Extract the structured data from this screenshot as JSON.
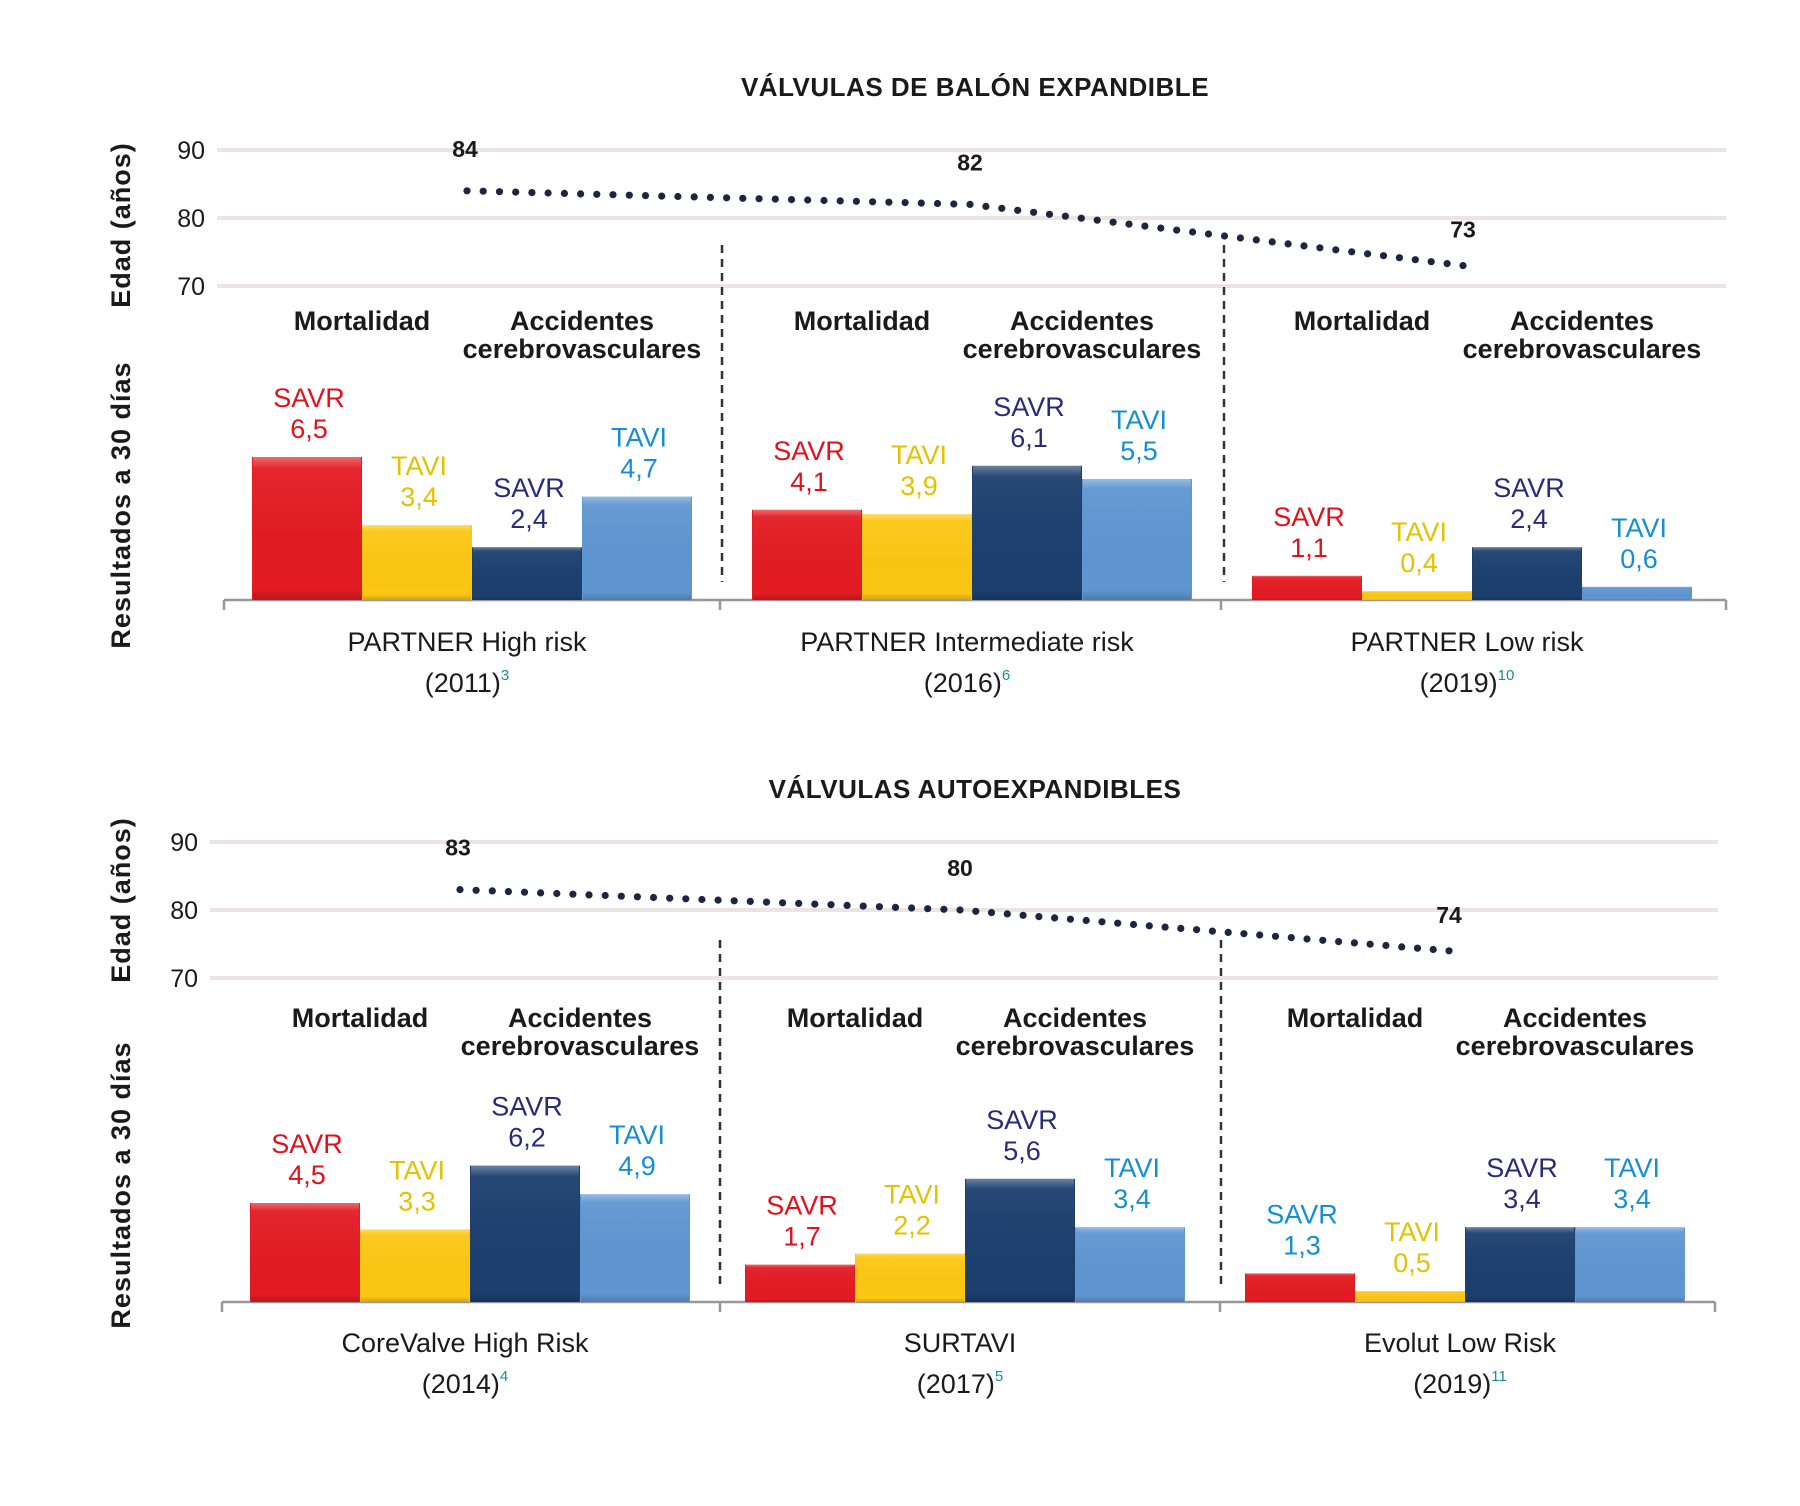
{
  "colors": {
    "mortality_savr": "#e31b23",
    "mortality_tavi": "#fcc713",
    "stroke_savr": "#1c3f6e",
    "stroke_tavi": "#5f96d1",
    "label_red": "#e3101b",
    "label_yellow": "#e3c200",
    "label_navy": "#2a2a7c",
    "label_blue": "#148fd6"
  },
  "chart_data": [
    {
      "type": "bar",
      "title": "VÁLVULAS DE BALÓN EXPANDIBLE",
      "ylabel_age": "Edad (años)",
      "ylabel_outcomes": "Resultados a 30 días",
      "age_axis": {
        "ticks": [
          "90",
          "80",
          "70"
        ],
        "range": [
          70,
          90
        ],
        "grid": true
      },
      "group_headers": [
        "Mortalidad",
        "Accidentes",
        "cerebrovasculares"
      ],
      "trials": [
        {
          "name": "PARTNER High risk",
          "year": "(2011)",
          "ref": "3",
          "age": 84,
          "bars": [
            {
              "series": "Mortalidad SAVR",
              "label": "SAVR",
              "value_text": "6,5",
              "value": 6.5,
              "label_color": "label_red",
              "bar_color": "mortality_savr"
            },
            {
              "series": "Mortalidad TAVI",
              "label": "TAVI",
              "value_text": "3,4",
              "value": 3.4,
              "label_color": "label_yellow",
              "bar_color": "mortality_tavi"
            },
            {
              "series": "ACV SAVR",
              "label": "SAVR",
              "value_text": "2,4",
              "value": 2.4,
              "label_color": "label_navy",
              "bar_color": "stroke_savr"
            },
            {
              "series": "ACV TAVI",
              "label": "TAVI",
              "value_text": "4,7",
              "value": 4.7,
              "label_color": "label_blue",
              "bar_color": "stroke_tavi"
            }
          ]
        },
        {
          "name": "PARTNER Intermediate risk",
          "year": "(2016)",
          "ref": "6",
          "age": 82,
          "bars": [
            {
              "series": "Mortalidad SAVR",
              "label": "SAVR",
              "value_text": "4,1",
              "value": 4.1,
              "label_color": "label_red",
              "bar_color": "mortality_savr"
            },
            {
              "series": "Mortalidad TAVI",
              "label": "TAVI",
              "value_text": "3,9",
              "value": 3.9,
              "label_color": "label_yellow",
              "bar_color": "mortality_tavi"
            },
            {
              "series": "ACV SAVR",
              "label": "SAVR",
              "value_text": "6,1",
              "value": 6.1,
              "label_color": "label_navy",
              "bar_color": "stroke_savr"
            },
            {
              "series": "ACV TAVI",
              "label": "TAVI",
              "value_text": "5,5",
              "value": 5.5,
              "label_color": "label_blue",
              "bar_color": "stroke_tavi"
            }
          ]
        },
        {
          "name": "PARTNER Low risk",
          "year": "(2019)",
          "ref": "10",
          "age": 73,
          "bars": [
            {
              "series": "Mortalidad SAVR",
              "label": "SAVR",
              "value_text": "1,1",
              "value": 1.1,
              "label_color": "label_red",
              "bar_color": "mortality_savr"
            },
            {
              "series": "Mortalidad TAVI",
              "label": "TAVI",
              "value_text": "0,4",
              "value": 0.4,
              "label_color": "label_yellow",
              "bar_color": "mortality_tavi"
            },
            {
              "series": "ACV SAVR",
              "label": "SAVR",
              "value_text": "2,4",
              "value": 2.4,
              "label_color": "label_navy",
              "bar_color": "stroke_savr"
            },
            {
              "series": "ACV TAVI",
              "label": "TAVI",
              "value_text": "0,6",
              "value": 0.6,
              "label_color": "label_blue",
              "bar_color": "stroke_tavi"
            }
          ]
        }
      ]
    },
    {
      "type": "bar",
      "title": "VÁLVULAS AUTOEXPANDIBLES",
      "ylabel_age": "Edad (años)",
      "ylabel_outcomes": "Resultados a 30 días",
      "age_axis": {
        "ticks": [
          "90",
          "80",
          "70"
        ],
        "range": [
          70,
          90
        ],
        "grid": true
      },
      "group_headers": [
        "Mortalidad",
        "Accidentes",
        "cerebrovasculares"
      ],
      "trials": [
        {
          "name": "CoreValve High Risk",
          "year": "(2014)",
          "ref": "4",
          "age": 83,
          "bars": [
            {
              "series": "Mortalidad SAVR",
              "label": "SAVR",
              "value_text": "4,5",
              "value": 4.5,
              "label_color": "label_red",
              "bar_color": "mortality_savr"
            },
            {
              "series": "Mortalidad TAVI",
              "label": "TAVI",
              "value_text": "3,3",
              "value": 3.3,
              "label_color": "label_yellow",
              "bar_color": "mortality_tavi"
            },
            {
              "series": "ACV SAVR",
              "label": "SAVR",
              "value_text": "6,2",
              "value": 6.2,
              "label_color": "label_navy",
              "bar_color": "stroke_savr"
            },
            {
              "series": "ACV TAVI",
              "label": "TAVI",
              "value_text": "4,9",
              "value": 4.9,
              "label_color": "label_blue",
              "bar_color": "stroke_tavi"
            }
          ]
        },
        {
          "name": "SURTAVI",
          "year": "(2017)",
          "ref": "5",
          "age": 80,
          "bars": [
            {
              "series": "Mortalidad SAVR",
              "label": "SAVR",
              "value_text": "1,7",
              "value": 1.7,
              "label_color": "label_red",
              "bar_color": "mortality_savr"
            },
            {
              "series": "Mortalidad TAVI",
              "label": "TAVI",
              "value_text": "2,2",
              "value": 2.2,
              "label_color": "label_yellow",
              "bar_color": "mortality_tavi"
            },
            {
              "series": "ACV SAVR",
              "label": "SAVR",
              "value_text": "5,6",
              "value": 5.6,
              "label_color": "label_navy",
              "bar_color": "stroke_savr"
            },
            {
              "series": "ACV TAVI",
              "label": "TAVI",
              "value_text": "3,4",
              "value": 3.4,
              "label_color": "label_blue",
              "bar_color": "stroke_tavi"
            }
          ]
        },
        {
          "name": "Evolut Low Risk",
          "year": "(2019)",
          "ref": "11",
          "age": 74,
          "bars": [
            {
              "series": "Mortalidad SAVR",
              "label": "SAVR",
              "value_text": "1,3",
              "value": 1.3,
              "label_color": "label_blue",
              "bar_color": "mortality_savr"
            },
            {
              "series": "Mortalidad TAVI",
              "label": "TAVI",
              "value_text": "0,5",
              "value": 0.5,
              "label_color": "label_yellow",
              "bar_color": "mortality_tavi"
            },
            {
              "series": "ACV SAVR",
              "label": "SAVR",
              "value_text": "3,4",
              "value": 3.4,
              "label_color": "label_navy",
              "bar_color": "stroke_savr"
            },
            {
              "series": "ACV TAVI",
              "label": "TAVI",
              "value_text": "3,4",
              "value": 3.4,
              "label_color": "label_blue",
              "bar_color": "stroke_tavi"
            }
          ]
        }
      ]
    }
  ]
}
